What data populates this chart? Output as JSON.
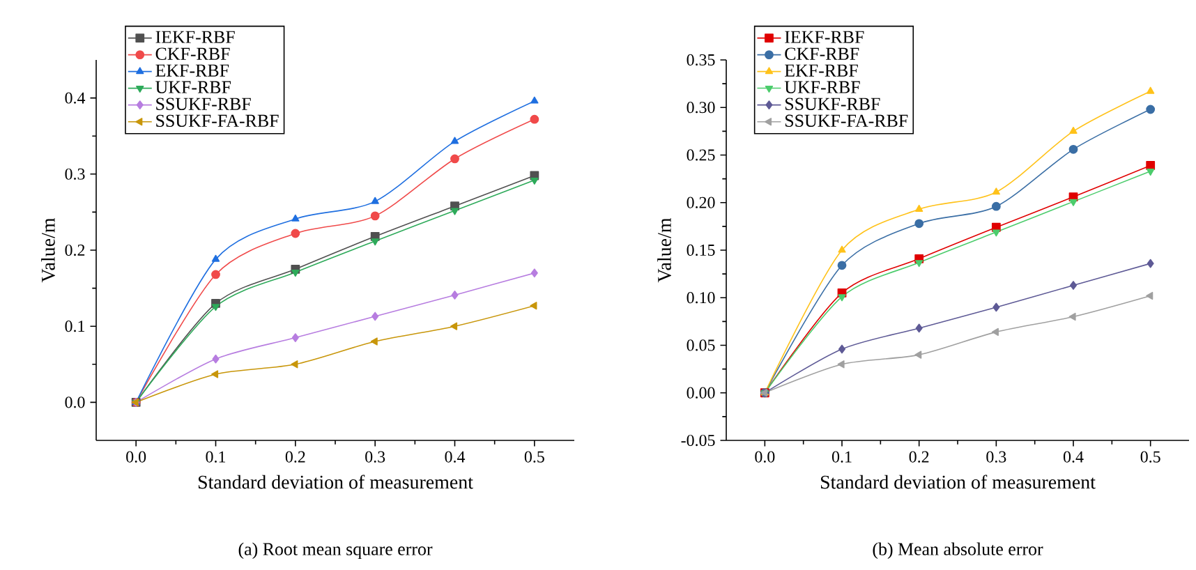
{
  "chart_data": [
    {
      "type": "line",
      "xlabel": "Standard deviation of measurement",
      "ylabel": "Value/m",
      "x": [
        0.0,
        0.1,
        0.2,
        0.3,
        0.4,
        0.5
      ],
      "xlim": [
        -0.05,
        0.55
      ],
      "xticks": [
        {
          "value": 0.0,
          "label": "0.0"
        },
        0.1,
        0.2,
        0.3,
        0.4,
        0.5
      ],
      "ylim": [
        -0.05,
        0.45
      ],
      "yticks": [
        {
          "value": 0.0,
          "label": "0.0"
        },
        0.1,
        0.2,
        0.3,
        0.4
      ],
      "legend": "top left",
      "grid": false,
      "annotations": [
        "(a) Root mean square error"
      ],
      "series": [
        {
          "name": "IEKF-RBF",
          "color": "#505050",
          "marker": "square",
          "values": [
            0,
            0.13,
            0.175,
            0.218,
            0.258,
            0.298
          ]
        },
        {
          "name": "CKF-RBF",
          "color": "#f04a4a",
          "marker": "circle",
          "values": [
            0,
            0.168,
            0.222,
            0.245,
            0.32,
            0.372
          ]
        },
        {
          "name": "EKF-RBF",
          "color": "#1f6fe0",
          "marker": "triangle",
          "values": [
            0,
            0.188,
            0.241,
            0.264,
            0.343,
            0.396
          ]
        },
        {
          "name": "UKF-RBF",
          "color": "#2eaa5a",
          "marker": "triangle-down",
          "values": [
            0,
            0.126,
            0.171,
            0.212,
            0.252,
            0.292
          ]
        },
        {
          "name": "SSUKF-RBF",
          "color": "#b77de0",
          "marker": "diamond",
          "values": [
            0,
            0.057,
            0.085,
            0.113,
            0.141,
            0.17
          ]
        },
        {
          "name": "SSUKF-FA-RBF",
          "color": "#c8960a",
          "marker": "triangle-left",
          "values": [
            0,
            0.037,
            0.05,
            0.08,
            0.1,
            0.127
          ]
        }
      ]
    },
    {
      "type": "line",
      "xlabel": "Standard deviation of measurement",
      "ylabel": "Value/m",
      "x": [
        0.0,
        0.1,
        0.2,
        0.3,
        0.4,
        0.5
      ],
      "xlim": [
        -0.05,
        0.55
      ],
      "xticks": [
        {
          "value": 0.0,
          "label": "0.0"
        },
        0.1,
        0.2,
        0.3,
        0.4,
        0.5
      ],
      "ylim": [
        -0.05,
        0.35
      ],
      "yticks": [
        {
          "value": -0.05,
          "label": "-0.05"
        },
        {
          "value": 0.0,
          "label": "0.00"
        },
        0.05,
        {
          "value": 0.1,
          "label": "0.10"
        },
        0.15,
        {
          "value": 0.2,
          "label": "0.20"
        },
        0.25,
        {
          "value": 0.3,
          "label": "0.30"
        },
        0.35
      ],
      "legend": "top left",
      "grid": false,
      "annotations": [
        "(b) Mean absolute error"
      ],
      "series": [
        {
          "name": "IEKF-RBF",
          "color": "#e00000",
          "marker": "square",
          "values": [
            0,
            0.105,
            0.141,
            0.174,
            0.206,
            0.239
          ]
        },
        {
          "name": "CKF-RBF",
          "color": "#3a6ea5",
          "marker": "circle",
          "values": [
            0,
            0.134,
            0.178,
            0.196,
            0.256,
            0.298
          ]
        },
        {
          "name": "EKF-RBF",
          "color": "#ffc21a",
          "marker": "triangle",
          "values": [
            0,
            0.15,
            0.193,
            0.211,
            0.275,
            0.317
          ]
        },
        {
          "name": "UKF-RBF",
          "color": "#4ccc6c",
          "marker": "triangle-down",
          "values": [
            0,
            0.101,
            0.137,
            0.169,
            0.201,
            0.233
          ]
        },
        {
          "name": "SSUKF-RBF",
          "color": "#5e5a96",
          "marker": "diamond",
          "values": [
            0,
            0.046,
            0.068,
            0.09,
            0.113,
            0.136
          ]
        },
        {
          "name": "SSUKF-FA-RBF",
          "color": "#a0a0a0",
          "marker": "triangle-left",
          "values": [
            0,
            0.03,
            0.04,
            0.064,
            0.08,
            0.102
          ]
        }
      ]
    }
  ]
}
